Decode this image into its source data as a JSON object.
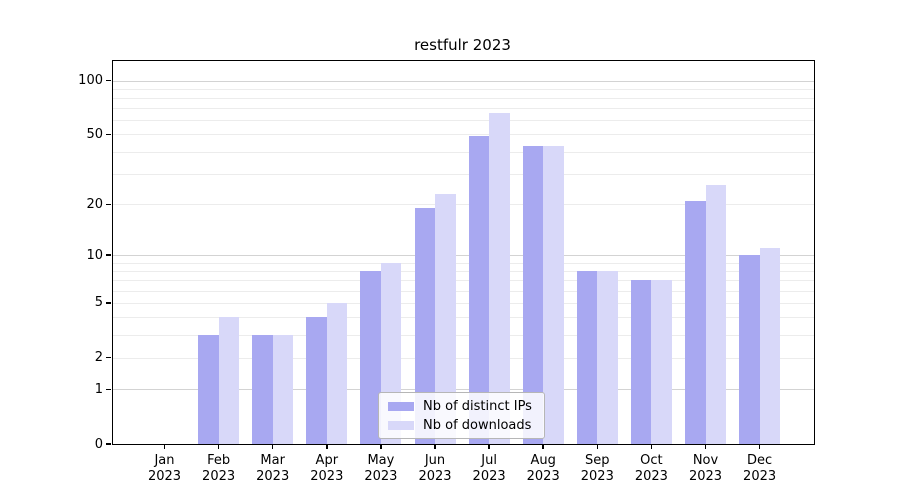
{
  "chart_data": {
    "type": "bar",
    "title": "restfulr 2023",
    "categories": [
      "Jan",
      "Feb",
      "Mar",
      "Apr",
      "May",
      "Jun",
      "Jul",
      "Aug",
      "Sep",
      "Oct",
      "Nov",
      "Dec"
    ],
    "year_label": "2023",
    "series": [
      {
        "name": "Nb of distinct IPs",
        "color": "#a8a8f1",
        "values": [
          0,
          3,
          3,
          4,
          8,
          19,
          49,
          43,
          8,
          7,
          21,
          10
        ]
      },
      {
        "name": "Nb of downloads",
        "color": "#d8d8f9",
        "values": [
          0,
          4,
          3,
          5,
          9,
          23,
          66,
          43,
          8,
          7,
          26,
          11
        ]
      }
    ],
    "y_axis": {
      "scale": "log10(1+v)",
      "tick_values": [
        0,
        1,
        2,
        5,
        10,
        20,
        50,
        100
      ],
      "tick_labels": [
        "0",
        "1",
        "2",
        "5",
        "10",
        "20",
        "50",
        "100"
      ],
      "minor_gridlines": [
        2,
        3,
        4,
        5,
        6,
        7,
        8,
        9,
        20,
        30,
        40,
        50,
        60,
        70,
        80,
        90
      ],
      "major_gridlines": [
        1,
        10,
        100
      ],
      "top_value": 130
    },
    "legend": {
      "position": "lower-center",
      "entries": [
        "Nb of distinct IPs",
        "Nb of downloads"
      ]
    },
    "grid": true
  }
}
